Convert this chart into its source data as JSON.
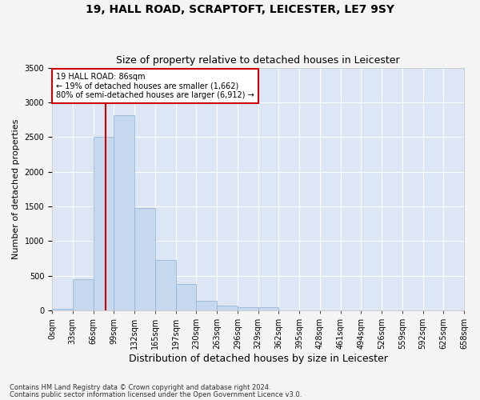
{
  "title": "19, HALL ROAD, SCRAPTOFT, LEICESTER, LE7 9SY",
  "subtitle": "Size of property relative to detached houses in Leicester",
  "xlabel": "Distribution of detached houses by size in Leicester",
  "ylabel": "Number of detached properties",
  "bar_color": "#c5d8ed",
  "bar_edge_color": "#8ab0d0",
  "background_color": "#dce6f5",
  "grid_color": "#ffffff",
  "bin_labels": [
    "0sqm",
    "33sqm",
    "66sqm",
    "99sqm",
    "132sqm",
    "165sqm",
    "197sqm",
    "230sqm",
    "263sqm",
    "296sqm",
    "329sqm",
    "362sqm",
    "395sqm",
    "428sqm",
    "461sqm",
    "494sqm",
    "526sqm",
    "559sqm",
    "592sqm",
    "625sqm",
    "658sqm"
  ],
  "bar_values": [
    20,
    450,
    2500,
    2820,
    1480,
    730,
    380,
    140,
    75,
    50,
    50,
    0,
    0,
    0,
    0,
    0,
    0,
    0,
    0,
    0
  ],
  "property_label": "19 HALL ROAD: 86sqm",
  "annotation_line1": "← 19% of detached houses are smaller (1,662)",
  "annotation_line2": "80% of semi-detached houses are larger (6,912) →",
  "red_line_x": 86,
  "bin_width": 33,
  "ylim": [
    0,
    3500
  ],
  "yticks": [
    0,
    500,
    1000,
    1500,
    2000,
    2500,
    3000,
    3500
  ],
  "footer_line1": "Contains HM Land Registry data © Crown copyright and database right 2024.",
  "footer_line2": "Contains public sector information licensed under the Open Government Licence v3.0.",
  "annotation_box_color": "#ffffff",
  "annotation_box_edge": "#cc0000",
  "red_line_color": "#cc0000",
  "title_fontsize": 10,
  "subtitle_fontsize": 9,
  "tick_fontsize": 7,
  "ylabel_fontsize": 8,
  "xlabel_fontsize": 9,
  "footer_fontsize": 6
}
